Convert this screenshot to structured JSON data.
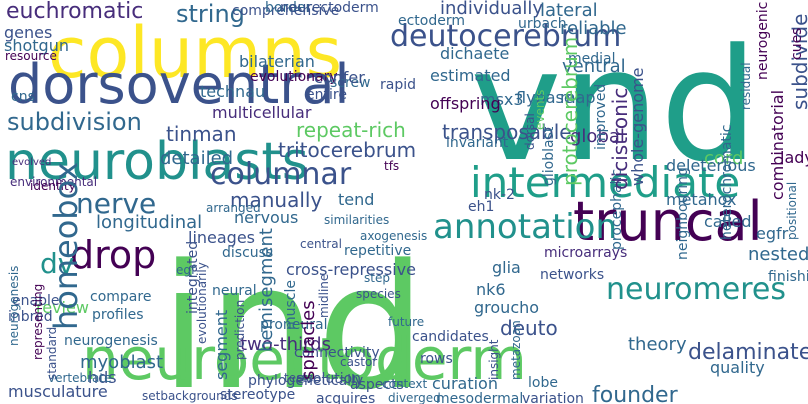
{
  "words": {
    "w1": "columns",
    "w2": "dorsoventral",
    "w3": "vnd",
    "w4": "deutocerebrum",
    "w5": "neuroblasts",
    "w6": "ind",
    "w7": "intermediate",
    "w8": "neuroectoderm",
    "w9": "neuromeres",
    "w10": "truncal",
    "w11": "annotation",
    "w12": "drop",
    "w13": "dv",
    "w14": "homeobox",
    "w15": "nerve",
    "w16": "columnar",
    "w17": "protocerebrum",
    "w18": "subdivision",
    "w19": "euchromatic",
    "w20": "longitudinal",
    "w21": "founder",
    "w22": "theory",
    "w23": "delaminate",
    "w24": "musculature",
    "w25": "myoblast",
    "w26": "hds",
    "w27": "two-thirds",
    "w28": "mb",
    "w29": "evolution",
    "w30": "stereotype",
    "w31": "setbackgrounds",
    "w32": "proneural",
    "w33": "muscle",
    "w34": "nervous",
    "w35": "manually",
    "w36": "detailed",
    "w37": "cns",
    "w38": "shotgun",
    "w39": "resource",
    "w40": "genes",
    "w41": "string",
    "w42": "comprehensive",
    "w43": "border",
    "w44": "neurectoderm",
    "w45": "ectoderm",
    "w46": "individually",
    "w47": "lateral",
    "w48": "urbach",
    "w49": "reliable",
    "w50": "dichaete",
    "w51": "medial",
    "w52": "ventral",
    "w53": "map",
    "w54": "flybase",
    "w55": "msx3",
    "w56": "offspring",
    "w57": "transposable",
    "w58": "global",
    "w59": "whole-genome",
    "w60": "nk-2",
    "w61": "eh1",
    "w62": "tfs",
    "w63": "tritocerebrum",
    "w64": "repeat-rich",
    "w65": "subdivide",
    "w66": "procephalic",
    "w67": "heterochromatic",
    "w68": "segment",
    "w69": "fates",
    "w70": "tinman",
    "w71": "bilaterian",
    "w72": "evolutionary",
    "w73": "technau",
    "w74": "multicellular",
    "w75": "entire",
    "w76": "screw",
    "w77": "rapid",
    "w78": "confer",
    "w79": "invariant",
    "w80": "estimated",
    "w81": "metahox",
    "w82": "called",
    "w83": "egfr",
    "w84": "diversity",
    "w85": "nested",
    "w86": "finishing",
    "w87": "quality",
    "w88": "ladybird",
    "w89": "cord",
    "w90": "deleterious",
    "w91": "microarrays",
    "w92": "networks",
    "w93": "nk6",
    "w94": "glia",
    "w95": "nk6",
    "w96": "groucho",
    "w97": "deuto",
    "w98": "rows",
    "w99": "curation",
    "w100": "variation",
    "w101": "lobe",
    "w102": "mesodermal",
    "w103": "diverged",
    "w104": "acquires",
    "w105": "phylogenetically",
    "w106": "arranged",
    "w107": "egf",
    "w108": "review",
    "w109": "neurogenesis",
    "w110": "vertebrate",
    "w111": "inbred",
    "w112": "enable",
    "w113": "compare",
    "w114": "profiles",
    "w115": "environmental",
    "w116": "evolved",
    "w117": "identity",
    "w118": "global",
    "w119": "lineages",
    "w120": "discuss",
    "w121": "neural",
    "w122": "spiracles",
    "w123": "hemisegment",
    "w124": "prediction",
    "w125": "cross-repressive",
    "w126": "central",
    "w127": "transposable",
    "w128": "metahox",
    "w129": "tend",
    "w130": "similarities",
    "w131": "axogenesis",
    "w132": "repetitive",
    "w133": "step",
    "w134": "species",
    "w135": "integrated",
    "w136": "future",
    "w137": "candidates",
    "w138": "tests",
    "w139": "aspects",
    "w140": "context",
    "w141": "connectivity",
    "w142": "castor",
    "v1": "homeobox",
    "v2": "subdivide",
    "v3": "combinatorial",
    "v4": "heterochromatic",
    "v5": "neighbouring",
    "v6": "procephalic",
    "v7": "whole-genome",
    "v8": "dicistronic",
    "v9": "protocerebrum",
    "v10": "improved",
    "v11": "glioblast",
    "v12": "dorsal",
    "v13": "spiracles",
    "v14": "hemisegment",
    "v15": "prediction",
    "v16": "segment",
    "v17": "evolutionarily",
    "v18": "muscle",
    "v19": "midline",
    "v20": "representing",
    "v21": "standard",
    "v22": "neurogenesis",
    "v23": "metazoan",
    "v24": "insight",
    "v25": "neurogenic",
    "v26": "residual",
    "v27": "cues",
    "v28": "positional",
    "v29": "events",
    "v30": "integrated"
  }
}
